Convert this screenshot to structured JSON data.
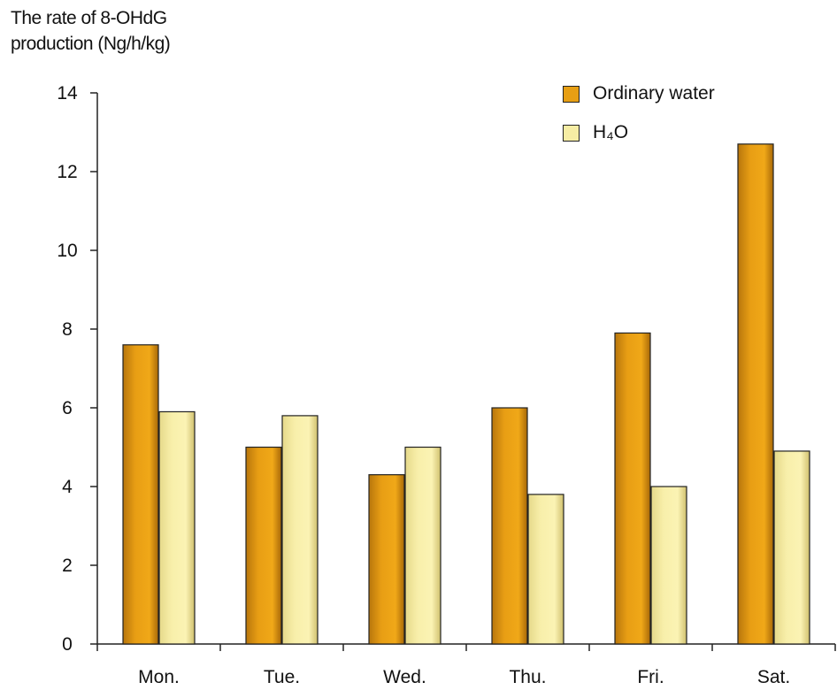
{
  "chart_data": {
    "type": "bar",
    "ylabel": [
      "The rate of 8-OHdG",
      "production (Ng/h/kg)"
    ],
    "xlabel": "",
    "categories": [
      "Mon.",
      "Tue.",
      "Wed.",
      "Thu.",
      "Fri.",
      "Sat."
    ],
    "series": [
      {
        "name": "Ordinary water",
        "values": [
          7.6,
          5.0,
          4.3,
          6.0,
          7.9,
          12.7
        ],
        "color": "#E79F14"
      },
      {
        "name": "H₄O",
        "values": [
          5.9,
          5.8,
          5.0,
          3.8,
          4.0,
          4.9
        ],
        "color": "#F6EDA4"
      }
    ],
    "ylim": [
      0,
      14
    ],
    "yticks": [
      0,
      2,
      4,
      6,
      8,
      10,
      12,
      14
    ],
    "grid": false,
    "legend_position": "top-right"
  }
}
